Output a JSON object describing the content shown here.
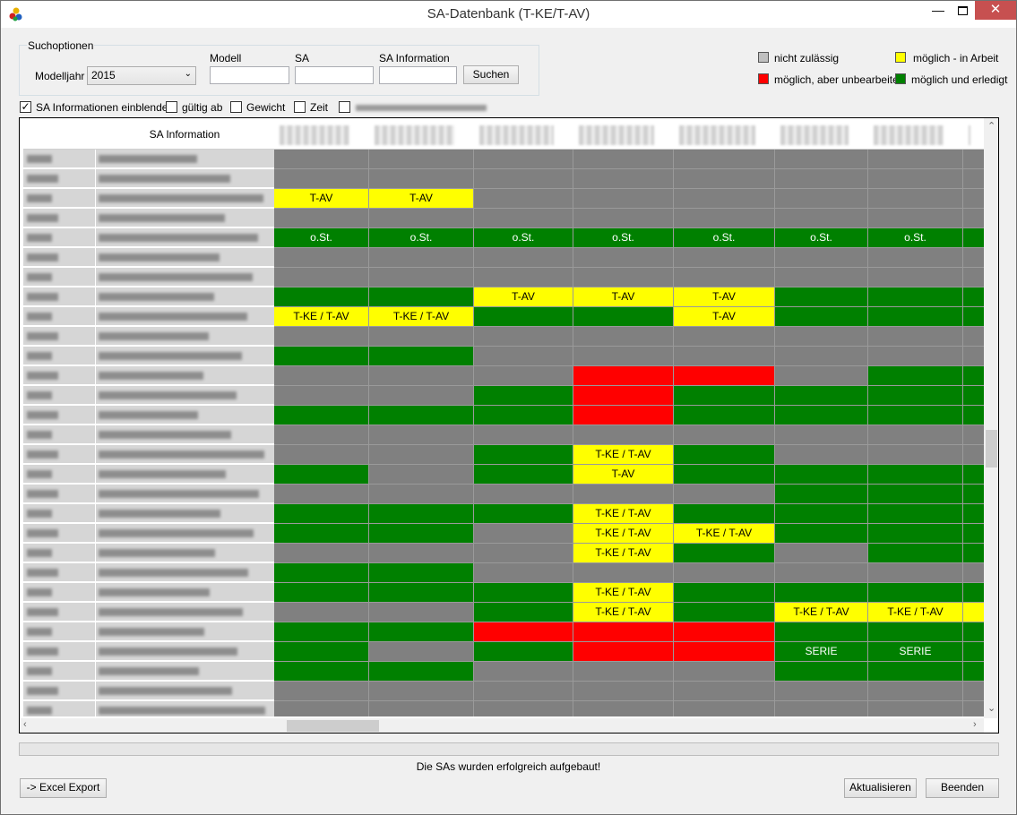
{
  "window": {
    "title": "SA-Datenbank (T-KE/T-AV)"
  },
  "search": {
    "group_label": "Suchoptionen",
    "modelljahr_label": "Modelljahr",
    "modelljahr_value": "2015",
    "modell_label": "Modell",
    "sa_label": "SA",
    "sa_info_label": "SA Information",
    "search_button": "Suchen"
  },
  "legend": {
    "not_allowed": "nicht zulässig",
    "in_progress": "möglich - in Arbeit",
    "unprocessed": "möglich, aber unbearbeitet",
    "done": "möglich und erledigt",
    "colors": {
      "gray": "#808080",
      "yellow": "#ffff00",
      "red": "#ff0000",
      "green": "#008000"
    }
  },
  "options": {
    "show_sa_info": "SA Informationen einblenden",
    "valid_from": "gültig ab",
    "weight": "Gewicht",
    "time": "Zeit"
  },
  "grid": {
    "header_sa_info": "SA Information",
    "rows": [
      [
        "g",
        "g",
        "g",
        "g",
        "g",
        "g",
        "g"
      ],
      [
        "g",
        "g",
        "g",
        "g",
        "g",
        "g",
        "g"
      ],
      [
        "Y:T-AV",
        "Y:T-AV",
        "g",
        "g",
        "g",
        "g",
        "g"
      ],
      [
        "g",
        "g",
        "g",
        "g",
        "g",
        "g",
        "g"
      ],
      [
        "G:o.St.",
        "G:o.St.",
        "G:o.St.",
        "G:o.St.",
        "G:o.St.",
        "G:o.St.",
        "G:o.St."
      ],
      [
        "g",
        "g",
        "g",
        "g",
        "g",
        "g",
        "g"
      ],
      [
        "g",
        "g",
        "g",
        "g",
        "g",
        "g",
        "g"
      ],
      [
        "G",
        "G",
        "Y:T-AV",
        "Y:T-AV",
        "Y:T-AV",
        "G",
        "G"
      ],
      [
        "Y:T-KE / T-AV",
        "Y:T-KE / T-AV",
        "G",
        "G",
        "Y:T-AV",
        "G",
        "G"
      ],
      [
        "g",
        "g",
        "g",
        "g",
        "g",
        "g",
        "g"
      ],
      [
        "G",
        "G",
        "g",
        "g",
        "g",
        "g",
        "g"
      ],
      [
        "g",
        "g",
        "g",
        "R",
        "R",
        "g",
        "G"
      ],
      [
        "g",
        "g",
        "G",
        "R",
        "G",
        "G",
        "G"
      ],
      [
        "G",
        "G",
        "G",
        "R",
        "G",
        "G",
        "G"
      ],
      [
        "g",
        "g",
        "g",
        "g",
        "g",
        "g",
        "g"
      ],
      [
        "g",
        "g",
        "G",
        "Y:T-KE / T-AV",
        "G",
        "g",
        "g"
      ],
      [
        "G",
        "g",
        "G",
        "Y:T-AV",
        "G",
        "G",
        "G"
      ],
      [
        "g",
        "g",
        "g",
        "g",
        "g",
        "G",
        "G"
      ],
      [
        "G",
        "G",
        "G",
        "Y:T-KE / T-AV",
        "G",
        "G",
        "G"
      ],
      [
        "G",
        "G",
        "g",
        "Y:T-KE / T-AV",
        "Y:T-KE / T-AV",
        "G",
        "G"
      ],
      [
        "g",
        "g",
        "g",
        "Y:T-KE / T-AV",
        "G",
        "g",
        "G"
      ],
      [
        "G",
        "G",
        "g",
        "g",
        "g",
        "g",
        "g"
      ],
      [
        "G",
        "G",
        "G",
        "Y:T-KE / T-AV",
        "G",
        "G",
        "G"
      ],
      [
        "g",
        "g",
        "G",
        "Y:T-KE / T-AV",
        "G",
        "Y:T-KE / T-AV",
        "Y:T-KE / T-AV"
      ],
      [
        "G",
        "G",
        "R",
        "R",
        "R",
        "G",
        "G"
      ],
      [
        "G",
        "g",
        "G",
        "R",
        "R",
        "G:SERIE",
        "G:SERIE"
      ],
      [
        "G",
        "G",
        "g",
        "g",
        "g",
        "G",
        "G"
      ],
      [
        "g",
        "g",
        "g",
        "g",
        "g",
        "g",
        "g"
      ],
      [
        "g",
        "g",
        "g",
        "g",
        "g",
        "g",
        "g"
      ]
    ],
    "last_col": [
      "g",
      "g",
      "g",
      "g",
      "G",
      "g",
      "g",
      "G",
      "G",
      "g",
      "g",
      "G",
      "G",
      "G",
      "g",
      "g",
      "G",
      "G",
      "G",
      "G",
      "G",
      "g",
      "G",
      "Y",
      "G",
      "G",
      "G",
      "g",
      "g"
    ]
  },
  "status_text": "Die SAs wurden erfolgreich aufgebaut!",
  "footer": {
    "excel_export": "-> Excel Export",
    "refresh": "Aktualisieren",
    "close": "Beenden"
  }
}
